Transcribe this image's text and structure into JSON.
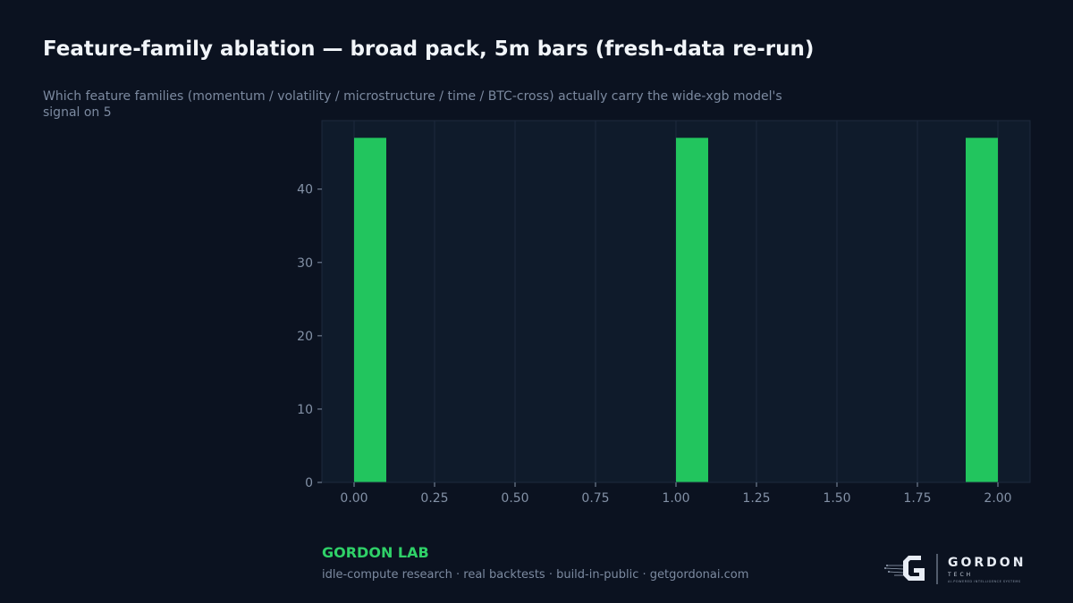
{
  "header": {
    "title": "Feature-family ablation — broad pack, 5m bars (fresh-data re-run)",
    "subtitle": "Which feature families (momentum / volatility / microstructure / time / BTC-cross) actually carry the wide-xgb model's signal on 5"
  },
  "footer": {
    "brand": "GORDON LAB",
    "tagline": "idle-compute research · real backtests · build-in-public · getgordonai.com",
    "logo_word": "GORDON",
    "logo_sub": "TECH",
    "logo_tag": "AI-POWERED INTELLIGENCE SYSTEMS"
  },
  "colors": {
    "background": "#0b1220",
    "plot_bg": "#0f1b2b",
    "bar": "#22c55e",
    "grid": "#1c2a3c",
    "tick_text": "#8391a6",
    "brand": "#2fd168"
  },
  "chart_data": {
    "type": "bar",
    "title": "",
    "xlabel": "",
    "ylabel": "",
    "bars": [
      {
        "x": 0.0,
        "width": 0.1,
        "value": 47
      },
      {
        "x": 1.0,
        "width": 0.1,
        "value": 47
      },
      {
        "x": 1.9,
        "width": 0.1,
        "value": 47
      }
    ],
    "xlim": [
      -0.1,
      2.1
    ],
    "ylim": [
      0,
      49.35
    ],
    "xticks": [
      "0.00",
      "0.25",
      "0.50",
      "0.75",
      "1.00",
      "1.25",
      "1.50",
      "1.75",
      "2.00"
    ],
    "xtick_values": [
      0,
      0.25,
      0.5,
      0.75,
      1.0,
      1.25,
      1.5,
      1.75,
      2.0
    ],
    "yticks": [
      "0",
      "10",
      "20",
      "30",
      "40"
    ],
    "ytick_values": [
      0,
      10,
      20,
      30,
      40
    ],
    "grid": "vertical",
    "legend": "none"
  }
}
